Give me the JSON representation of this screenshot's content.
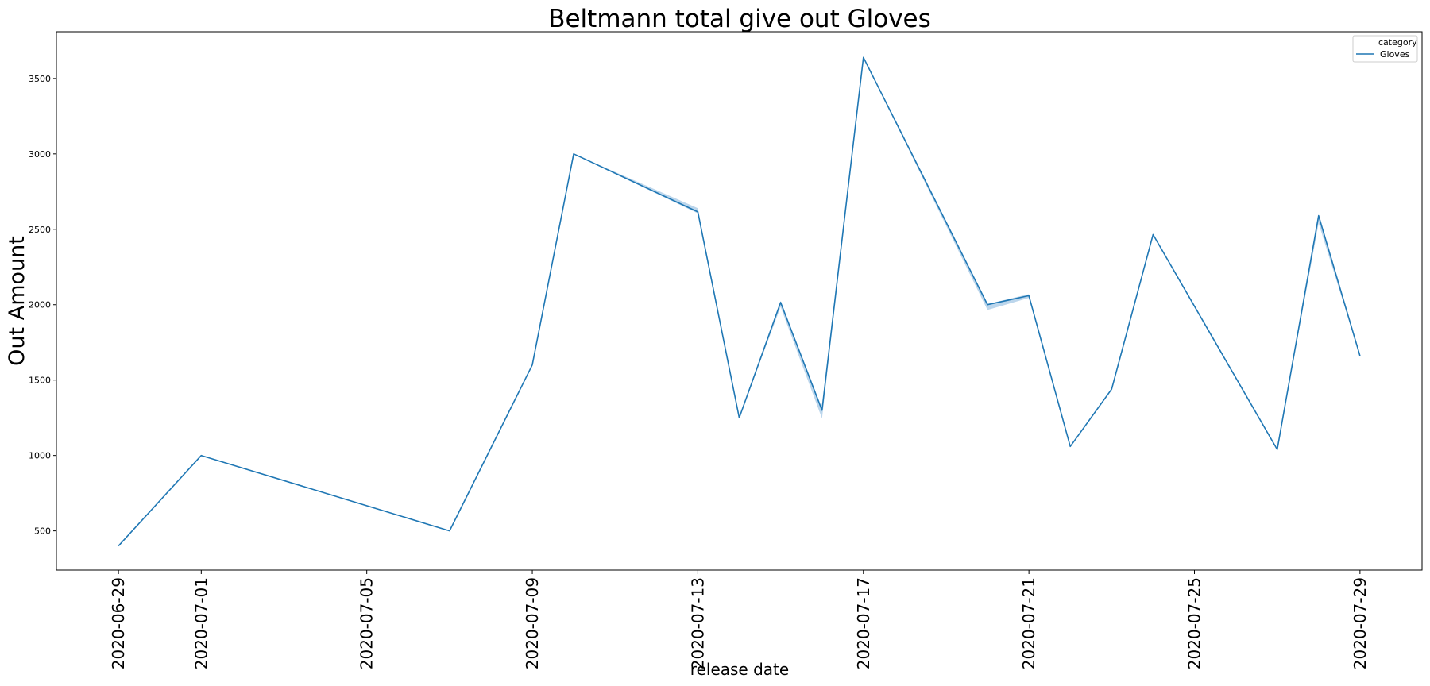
{
  "chart_data": {
    "type": "line",
    "title": "Beltmann total give out Gloves",
    "xlabel": "release date",
    "ylabel": "Out Amount",
    "x_ticks": [
      "2020-06-29",
      "2020-07-01",
      "2020-07-05",
      "2020-07-09",
      "2020-07-13",
      "2020-07-17",
      "2020-07-21",
      "2020-07-25",
      "2020-07-29"
    ],
    "y_ticks": [
      500,
      1000,
      1500,
      2000,
      2500,
      3000,
      3500
    ],
    "xlim": [
      "2020-06-27.5",
      "2020-07-30.5"
    ],
    "ylim": [
      240,
      3810
    ],
    "grid": false,
    "legend": {
      "title": "category",
      "placement": "top-right",
      "entries": [
        "Gloves"
      ]
    },
    "colors": {
      "line": "#1f77b4",
      "band": "#a6c8e6"
    },
    "series": [
      {
        "name": "Gloves",
        "x": [
          "2020-06-29",
          "2020-07-01",
          "2020-07-07",
          "2020-07-09",
          "2020-07-10",
          "2020-07-13",
          "2020-07-14",
          "2020-07-15",
          "2020-07-16",
          "2020-07-17",
          "2020-07-20",
          "2020-07-21",
          "2020-07-22",
          "2020-07-23",
          "2020-07-24",
          "2020-07-27",
          "2020-07-28",
          "2020-07-29"
        ],
        "values": [
          400,
          1000,
          500,
          1600,
          3000,
          2615,
          1250,
          2015,
          1300,
          3640,
          2000,
          2060,
          1060,
          1440,
          2465,
          1040,
          2590,
          1660
        ],
        "band_low": [
          400,
          1000,
          500,
          1600,
          3000,
          2605,
          1250,
          1985,
          1245,
          3640,
          1965,
          2045,
          1060,
          1440,
          2465,
          1040,
          2540,
          1660
        ],
        "band_high": [
          400,
          1000,
          500,
          1600,
          3000,
          2640,
          1250,
          2025,
          1310,
          3640,
          2005,
          2070,
          1060,
          1440,
          2465,
          1040,
          2600,
          1660
        ]
      }
    ]
  }
}
